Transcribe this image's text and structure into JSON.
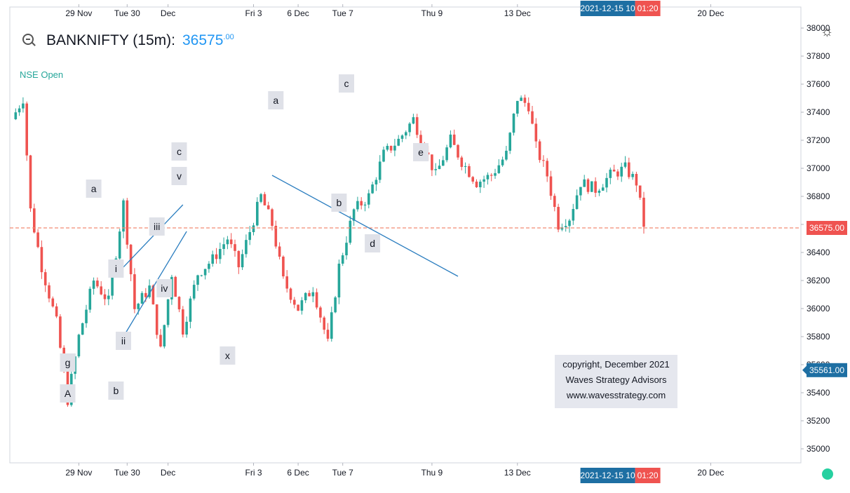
{
  "header": {
    "symbol": "BANKNIFTY (15m):",
    "price_main": "36575",
    "price_dec": ".00",
    "status": "NSE Open"
  },
  "copyright": {
    "line1": "copyright, December 2021",
    "line2": "Waves Strategy Advisors",
    "line3": "www.wavesstrategy.com"
  },
  "badges": {
    "last_price": "36575.00",
    "level": "35561.00",
    "crosshair_time": "2021-12-15 10",
    "countdown": "01:20"
  },
  "colors": {
    "up": "#26a69a",
    "down": "#ef5350",
    "trendline": "#2a7dbf",
    "price_line": "#f28b74",
    "badge_blue": "#1e6fa3",
    "badge_red": "#ef5350"
  },
  "chart_data": {
    "type": "candlestick",
    "title": "BANKNIFTY (15m)",
    "ylim": [
      34900,
      38150
    ],
    "y_ticks": [
      35000,
      35200,
      35400,
      35600,
      35800,
      36000,
      36200,
      36400,
      36600,
      36800,
      37000,
      37200,
      37400,
      37600,
      37800,
      38000
    ],
    "x_ticks": [
      "29 Nov",
      "Tue 30",
      "Dec",
      "Fri 3",
      "6 Dec",
      "Tue 7",
      "Thu 9",
      "13 Dec",
      "20 Dec"
    ],
    "price_series": [
      {
        "bar": 0,
        "value": 37350
      },
      {
        "bar": 3,
        "value": 37500
      },
      {
        "bar": 5,
        "value": 36700
      },
      {
        "bar": 8,
        "value": 36300
      },
      {
        "bar": 12,
        "value": 35900
      },
      {
        "bar": 15,
        "value": 35350
      },
      {
        "bar": 18,
        "value": 35800
      },
      {
        "bar": 22,
        "value": 36200
      },
      {
        "bar": 26,
        "value": 36050
      },
      {
        "bar": 30,
        "value": 36750
      },
      {
        "bar": 33,
        "value": 36000
      },
      {
        "bar": 37,
        "value": 36150
      },
      {
        "bar": 40,
        "value": 35700
      },
      {
        "bar": 43,
        "value": 36250
      },
      {
        "bar": 46,
        "value": 35850
      },
      {
        "bar": 50,
        "value": 36250
      },
      {
        "bar": 54,
        "value": 36350
      },
      {
        "bar": 58,
        "value": 36500
      },
      {
        "bar": 61,
        "value": 36300
      },
      {
        "bar": 64,
        "value": 36550
      },
      {
        "bar": 67,
        "value": 36800
      },
      {
        "bar": 70,
        "value": 36600
      },
      {
        "bar": 73,
        "value": 36200
      },
      {
        "bar": 77,
        "value": 36000
      },
      {
        "bar": 81,
        "value": 36150
      },
      {
        "bar": 85,
        "value": 35750
      },
      {
        "bar": 88,
        "value": 36300
      },
      {
        "bar": 92,
        "value": 36700
      },
      {
        "bar": 96,
        "value": 36800
      },
      {
        "bar": 100,
        "value": 37100
      },
      {
        "bar": 104,
        "value": 37200
      },
      {
        "bar": 108,
        "value": 37350
      },
      {
        "bar": 111,
        "value": 37150
      },
      {
        "bar": 114,
        "value": 36950
      },
      {
        "bar": 118,
        "value": 37200
      },
      {
        "bar": 121,
        "value": 37050
      },
      {
        "bar": 125,
        "value": 36900
      },
      {
        "bar": 129,
        "value": 36950
      },
      {
        "bar": 133,
        "value": 37100
      },
      {
        "bar": 136,
        "value": 37500
      },
      {
        "bar": 139,
        "value": 37450
      },
      {
        "bar": 141,
        "value": 37150
      },
      {
        "bar": 144,
        "value": 36950
      },
      {
        "bar": 147,
        "value": 36600
      },
      {
        "bar": 150,
        "value": 36650
      },
      {
        "bar": 153,
        "value": 36900
      },
      {
        "bar": 157,
        "value": 36850
      },
      {
        "bar": 161,
        "value": 36950
      },
      {
        "bar": 165,
        "value": 37000
      },
      {
        "bar": 168,
        "value": 36900
      },
      {
        "bar": 170,
        "value": 36600
      }
    ],
    "price_line": 36575,
    "level_line": 35561,
    "wave_labels": [
      {
        "text": "A",
        "bar": 15,
        "value": 35395
      },
      {
        "text": "g",
        "bar": 15,
        "value": 35615
      },
      {
        "text": "a",
        "bar": 22,
        "value": 36855
      },
      {
        "text": "b",
        "bar": 28,
        "value": 35415
      },
      {
        "text": "i",
        "bar": 28,
        "value": 36285
      },
      {
        "text": "ii",
        "bar": 30,
        "value": 35770
      },
      {
        "text": "iii",
        "bar": 39,
        "value": 36585
      },
      {
        "text": "iv",
        "bar": 41,
        "value": 36145
      },
      {
        "text": "v",
        "bar": 45,
        "value": 36945
      },
      {
        "text": "c",
        "bar": 45,
        "value": 37120
      },
      {
        "text": "x",
        "bar": 58,
        "value": 35665
      },
      {
        "text": "a",
        "bar": 71,
        "value": 37485
      },
      {
        "text": "b",
        "bar": 88,
        "value": 36755
      },
      {
        "text": "c",
        "bar": 90,
        "value": 37605
      },
      {
        "text": "d",
        "bar": 97,
        "value": 36465
      },
      {
        "text": "e",
        "bar": 110,
        "value": 37115
      }
    ],
    "trendlines": [
      {
        "from": [
          28,
          36240
        ],
        "to": [
          46,
          36740
        ]
      },
      {
        "from": [
          30,
          35800
        ],
        "to": [
          47,
          36550
        ]
      },
      {
        "from": [
          70,
          36950
        ],
        "to": [
          120,
          36230
        ]
      }
    ]
  }
}
